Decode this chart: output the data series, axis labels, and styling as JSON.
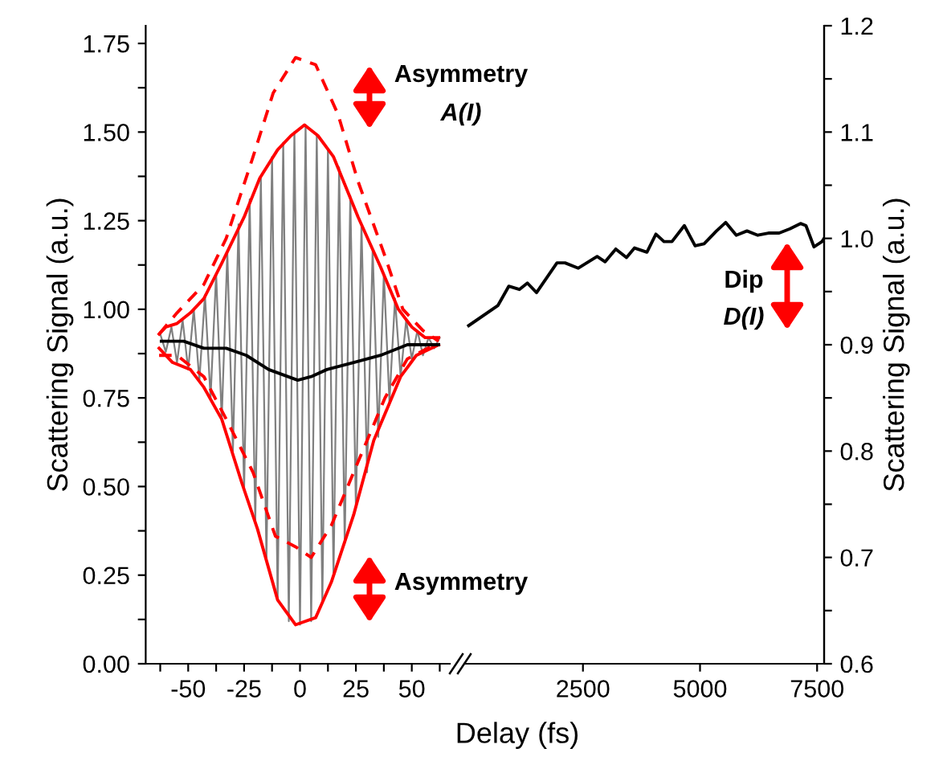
{
  "chart_data": [
    {
      "type": "line",
      "xlabel": "Delay (fs)",
      "ylabel": "Scattering Signal (a.u.)",
      "xlim": [
        -69,
        67
      ],
      "ylim": [
        0,
        1.8
      ],
      "xticks": [
        {
          "value": -62.5,
          "label": null
        },
        -50,
        {
          "value": -37.5,
          "label": null
        },
        -25,
        {
          "value": -12.5,
          "label": null
        },
        0,
        {
          "value": 12.5,
          "label": null
        },
        25,
        {
          "value": 37.5,
          "label": null
        },
        50,
        {
          "value": 62.5,
          "label": null
        }
      ],
      "yticks": [
        {
          "value": 0,
          "label": "0.00"
        },
        {
          "value": 0.125,
          "label": null
        },
        {
          "value": 0.25,
          "label": "0.25"
        },
        {
          "value": 0.375,
          "label": null
        },
        {
          "value": 0.5,
          "label": "0.50"
        },
        {
          "value": 0.625,
          "label": null
        },
        {
          "value": 0.75,
          "label": "0.75"
        },
        {
          "value": 0.875,
          "label": null
        },
        {
          "value": 1,
          "label": "1.00"
        },
        {
          "value": 1.125,
          "label": null
        },
        {
          "value": 1.25,
          "label": "1.25"
        },
        {
          "value": 1.375,
          "label": null
        },
        {
          "value": 1.5,
          "label": "1.50"
        },
        {
          "value": 1.625,
          "label": null
        },
        {
          "value": 1.75,
          "label": "1.75"
        }
      ],
      "series": [
        {
          "color": "#808080",
          "line_style": "solid",
          "x": [
            -62.5,
            -60,
            -57.5,
            -55,
            -52.5,
            -50,
            -47.5,
            -45,
            -42.5,
            -40,
            -37.5,
            -35,
            -32.5,
            -30,
            -27.5,
            -25,
            -22.5,
            -20,
            -17.5,
            -15,
            -12.5,
            -10,
            -7.5,
            -5,
            -2.5,
            0,
            2.5,
            5,
            7.5,
            10,
            12.5,
            15,
            17.5,
            20,
            22.5,
            25,
            27.5,
            30,
            32.5,
            35,
            37.5,
            40,
            42.5,
            45,
            47.5,
            50,
            52.5,
            55,
            57.5,
            60,
            62.5
          ],
          "values": [
            0.93,
            0.88,
            0.95,
            0.85,
            0.97,
            0.83,
            1.0,
            0.8,
            1.04,
            0.75,
            1.1,
            0.69,
            1.16,
            0.6,
            1.24,
            0.49,
            1.31,
            0.4,
            1.37,
            0.29,
            1.43,
            0.18,
            1.47,
            0.12,
            1.5,
            0.11,
            1.52,
            0.12,
            1.49,
            0.17,
            1.45,
            0.25,
            1.4,
            0.34,
            1.32,
            0.44,
            1.24,
            0.54,
            1.17,
            0.64,
            1.1,
            0.74,
            1.03,
            0.81,
            0.97,
            0.86,
            0.94,
            0.87,
            0.92,
            0.89,
            0.92
          ]
        },
        {
          "color": "#ff0000",
          "line_style": "solid",
          "x": [
            -63,
            -60,
            -55,
            -49,
            -43,
            -35,
            -25,
            -18,
            -10,
            -4,
            2,
            8,
            15,
            26,
            36,
            44,
            50,
            56,
            62
          ],
          "values": [
            0.93,
            0.95,
            0.96,
            0.99,
            1.03,
            1.13,
            1.26,
            1.37,
            1.45,
            1.49,
            1.52,
            1.49,
            1.43,
            1.26,
            1.12,
            1.0,
            0.95,
            0.92,
            0.92
          ]
        },
        {
          "color": "#ff0000",
          "line_style": "solid",
          "x": [
            -63,
            -57,
            -49,
            -43,
            -35,
            -26,
            -19,
            -10,
            -2,
            7,
            14,
            24,
            33,
            39,
            45,
            52,
            62
          ],
          "values": [
            0.89,
            0.85,
            0.83,
            0.78,
            0.69,
            0.51,
            0.38,
            0.18,
            0.11,
            0.13,
            0.23,
            0.42,
            0.63,
            0.72,
            0.81,
            0.87,
            0.9
          ]
        },
        {
          "color": "#ff0000",
          "line_style": "dashed",
          "x": [
            -63,
            -55,
            -43,
            -33,
            -21,
            -12,
            -2,
            7,
            17,
            26,
            38,
            46,
            55,
            62
          ],
          "values": [
            0.93,
            0.99,
            1.07,
            1.2,
            1.43,
            1.61,
            1.71,
            1.69,
            1.55,
            1.36,
            1.15,
            1.0,
            0.94,
            0.91
          ]
        },
        {
          "color": "#ff0000",
          "line_style": "dashed",
          "x": [
            -63,
            -55,
            -43,
            -33,
            -21,
            -11,
            -2,
            5,
            14,
            26,
            38,
            48,
            57,
            62
          ],
          "values": [
            0.87,
            0.87,
            0.81,
            0.69,
            0.54,
            0.36,
            0.33,
            0.3,
            0.39,
            0.57,
            0.75,
            0.86,
            0.89,
            0.9
          ]
        },
        {
          "color": "#000000",
          "line_style": "solid",
          "x": [
            -62,
            -52,
            -43,
            -33,
            -24,
            -14,
            -1,
            5,
            12,
            24,
            36,
            48,
            62
          ],
          "values": [
            0.91,
            0.91,
            0.89,
            0.89,
            0.87,
            0.83,
            0.8,
            0.81,
            0.83,
            0.85,
            0.87,
            0.9,
            0.9
          ]
        }
      ],
      "annotations": [
        "Asymmetry",
        "A(I)",
        "Asymmetry"
      ]
    },
    {
      "type": "line",
      "y2label": "Scattering Signal (a.u.)",
      "xlim": [
        0,
        7650
      ],
      "xticks": [
        2500,
        5000,
        7500
      ],
      "y2lim": [
        0.6,
        1.2
      ],
      "y2ticks": [
        {
          "value": 0.6,
          "label": "0.6"
        },
        {
          "value": 0.65,
          "label": null
        },
        {
          "value": 0.7,
          "label": "0.7"
        },
        {
          "value": 0.75,
          "label": null
        },
        {
          "value": 0.8,
          "label": "0.8"
        },
        {
          "value": 0.85,
          "label": null
        },
        {
          "value": 0.9,
          "label": "0.9"
        },
        {
          "value": 0.95,
          "label": null
        },
        {
          "value": 1.0,
          "label": "1.0"
        },
        {
          "value": 1.05,
          "label": null
        },
        {
          "value": 1.1,
          "label": "1.1"
        },
        {
          "value": 1.15,
          "label": null
        },
        {
          "value": 1.2,
          "label": "1.2"
        }
      ],
      "series": [
        {
          "color": "#000000",
          "line_style": "solid",
          "axis": "y2",
          "x": [
            60,
            686,
            916,
            1142,
            1314,
            1509,
            1945,
            2117,
            2401,
            2803,
            2974,
            3201,
            3430,
            3602,
            3866,
            4058,
            4230,
            4401,
            4665,
            4895,
            5087,
            5352,
            5547,
            5774,
            6003,
            6233,
            6460,
            6690,
            6919,
            7146,
            7262,
            7434,
            7605,
            7650
          ],
          "values": [
            0.918,
            0.937,
            0.955,
            0.952,
            0.958,
            0.949,
            0.977,
            0.977,
            0.972,
            0.983,
            0.978,
            0.99,
            0.982,
            0.991,
            0.987,
            1.004,
            0.997,
            0.997,
            1.012,
            0.993,
            0.995,
            1.007,
            1.015,
            1.003,
            1.007,
            1.003,
            1.005,
            1.005,
            1.009,
            1.014,
            1.012,
            0.992,
            0.997,
            1.0
          ]
        }
      ],
      "annotations": [
        "Dip",
        "D(I)"
      ]
    }
  ]
}
